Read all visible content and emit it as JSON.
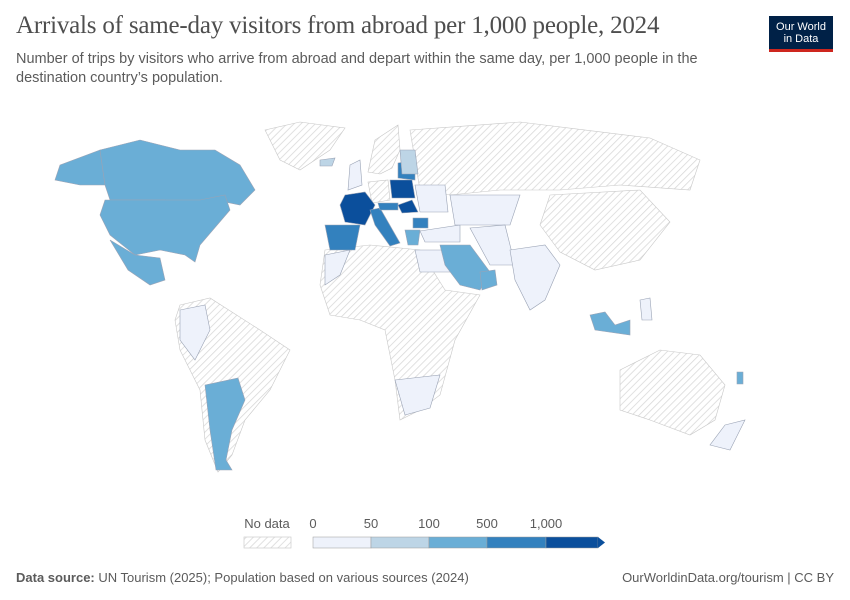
{
  "header": {
    "title": "Arrivals of same-day visitors from abroad per 1,000 people, 2024",
    "subtitle": "Number of trips by visitors who arrive from abroad and depart within the same day, per 1,000 people in the destination country’s population.",
    "logo_line1": "Our World",
    "logo_line2": "in Data"
  },
  "legend": {
    "no_data_label": "No data",
    "bins": [
      "0",
      "50",
      "100",
      "500",
      "1,000"
    ],
    "colors": [
      "#eef2fb",
      "#bdd5e6",
      "#6aaed6",
      "#3381be",
      "#0b4f9c"
    ],
    "no_data_color": "#e0e0e0"
  },
  "map": {
    "regions": [
      {
        "id": "greenland",
        "bin": null
      },
      {
        "id": "russia",
        "bin": null
      },
      {
        "id": "scandinavia",
        "bin": null
      },
      {
        "id": "china",
        "bin": null
      },
      {
        "id": "africa",
        "bin": null
      },
      {
        "id": "south-america",
        "bin": null
      },
      {
        "id": "australia",
        "bin": null
      },
      {
        "id": "germany",
        "bin": null
      },
      {
        "id": "alaska",
        "bin": 2
      },
      {
        "id": "canada",
        "bin": 2
      },
      {
        "id": "usa",
        "bin": 2
      },
      {
        "id": "mexico",
        "bin": 2
      },
      {
        "id": "argentina",
        "bin": 2
      },
      {
        "id": "colombia-peru",
        "bin": 0
      },
      {
        "id": "egypt",
        "bin": 0
      },
      {
        "id": "south-africa",
        "bin": 0
      },
      {
        "id": "morocco",
        "bin": 0
      },
      {
        "id": "iceland",
        "bin": 1
      },
      {
        "id": "uk",
        "bin": 0
      },
      {
        "id": "france",
        "bin": 4
      },
      {
        "id": "spain",
        "bin": 3
      },
      {
        "id": "italy",
        "bin": 3
      },
      {
        "id": "poland",
        "bin": 4
      },
      {
        "id": "baltics",
        "bin": 3
      },
      {
        "id": "finland",
        "bin": 1
      },
      {
        "id": "hungary",
        "bin": 4
      },
      {
        "id": "austria",
        "bin": 3
      },
      {
        "id": "bulgaria",
        "bin": 3
      },
      {
        "id": "greece",
        "bin": 2
      },
      {
        "id": "turkey",
        "bin": 0
      },
      {
        "id": "ukraine",
        "bin": 0
      },
      {
        "id": "kazakhstan",
        "bin": 0
      },
      {
        "id": "saudi-arabia",
        "bin": 2
      },
      {
        "id": "iran",
        "bin": 0
      },
      {
        "id": "india",
        "bin": 0
      },
      {
        "id": "malaysia",
        "bin": 2
      },
      {
        "id": "philippines",
        "bin": 0
      },
      {
        "id": "new-zealand",
        "bin": 0
      },
      {
        "id": "fiji",
        "bin": 2
      },
      {
        "id": "oman",
        "bin": 2
      }
    ]
  },
  "footer": {
    "source_label": "Data source:",
    "source_text": " UN Tourism (2025); Population based on various sources (2024)",
    "url": "OurWorldinData.org/tourism | CC BY"
  }
}
